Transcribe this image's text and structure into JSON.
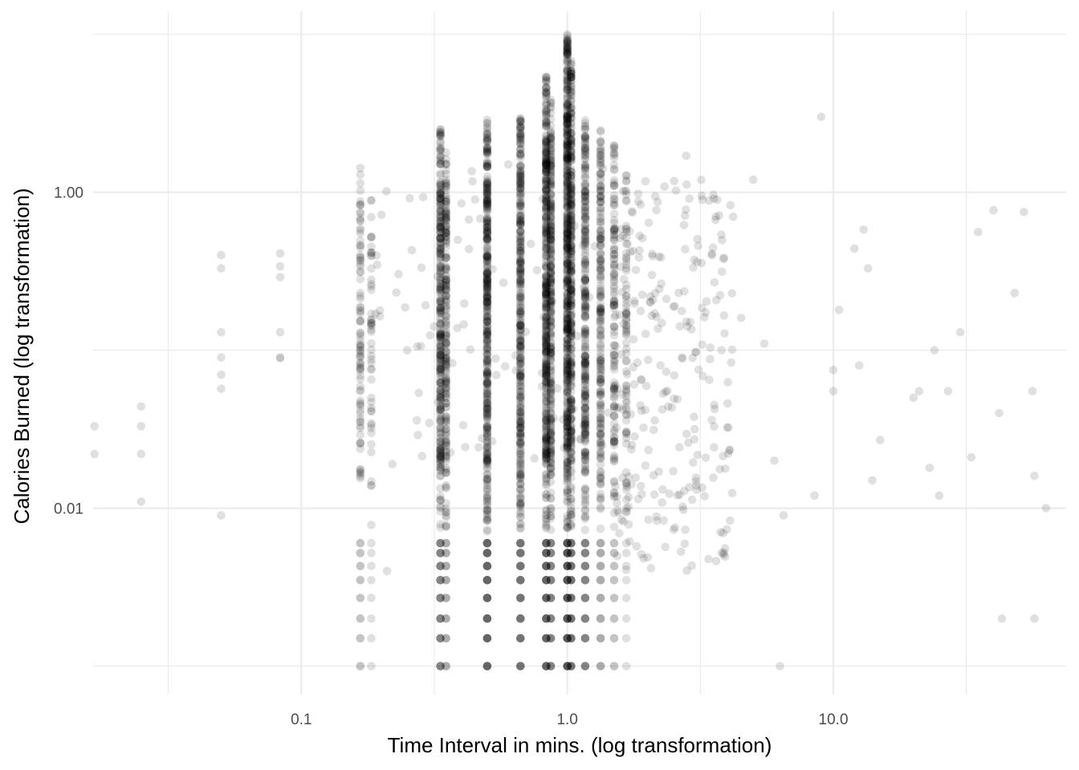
{
  "chart_data": {
    "type": "scatter",
    "title": "",
    "xlabel": "Time Interval in mins. (log transformation)",
    "ylabel": "Calories Burned (log transformation)",
    "x_scale": "log10",
    "y_scale": "log10",
    "xlim": [
      0.0165,
      75
    ],
    "ylim": [
      0.00066,
      14
    ],
    "x_ticks": [
      {
        "value": 0.1,
        "label": "0.1"
      },
      {
        "value": 1.0,
        "label": "1.0"
      },
      {
        "value": 10.0,
        "label": "10.0"
      }
    ],
    "y_ticks": [
      {
        "value": 0.01,
        "label": "0.01"
      },
      {
        "value": 1.0,
        "label": "1.00"
      }
    ],
    "grid": true,
    "point_color": "#000000",
    "point_opacity": 0.12,
    "gridline_color": "#ebebeb",
    "background": "#ffffff",
    "series": [
      {
        "x_columns": [
          0.1667,
          0.1833,
          0.3333,
          0.35,
          0.5,
          0.6667,
          0.8333,
          0.8667,
          1.0,
          1.0333,
          1.1667,
          1.3333,
          1.5,
          1.6667
        ],
        "column_y_ranges": [
          [
            0.001,
            1.45
          ],
          [
            0.001,
            0.9
          ],
          [
            0.001,
            2.6
          ],
          [
            0.001,
            1.8
          ],
          [
            0.001,
            3.2
          ],
          [
            0.001,
            3.4
          ],
          [
            0.001,
            5.5
          ],
          [
            0.001,
            3.9
          ],
          [
            0.001,
            10.0
          ],
          [
            0.001,
            6.8
          ],
          [
            0.001,
            2.9
          ],
          [
            0.001,
            2.5
          ],
          [
            0.001,
            2.0
          ],
          [
            0.001,
            1.3
          ]
        ],
        "column_weights": [
          18,
          10,
          60,
          40,
          80,
          70,
          85,
          60,
          100,
          70,
          55,
          40,
          25,
          15
        ],
        "discrete_low_y": [
          0.001,
          0.0015,
          0.002,
          0.0027,
          0.0035,
          0.0043,
          0.0052,
          0.006
        ],
        "outliers": [
          {
            "x": 0.0167,
            "y": 0.033
          },
          {
            "x": 0.0167,
            "y": 0.022
          },
          {
            "x": 0.025,
            "y": 0.033
          },
          {
            "x": 0.025,
            "y": 0.022
          },
          {
            "x": 0.025,
            "y": 0.044
          },
          {
            "x": 0.025,
            "y": 0.011
          },
          {
            "x": 0.05,
            "y": 0.4
          },
          {
            "x": 0.05,
            "y": 0.33
          },
          {
            "x": 0.05,
            "y": 0.13
          },
          {
            "x": 0.05,
            "y": 0.09
          },
          {
            "x": 0.05,
            "y": 0.07
          },
          {
            "x": 0.05,
            "y": 0.057
          },
          {
            "x": 0.05,
            "y": 0.009
          },
          {
            "x": 0.0833,
            "y": 0.41
          },
          {
            "x": 0.0833,
            "y": 0.34
          },
          {
            "x": 0.0833,
            "y": 0.29
          },
          {
            "x": 0.0833,
            "y": 0.13
          },
          {
            "x": 0.0833,
            "y": 0.09
          },
          {
            "x": 0.0833,
            "y": 0.089
          },
          {
            "x": 4.2,
            "y": 0.7
          },
          {
            "x": 5.0,
            "y": 1.2
          },
          {
            "x": 4.5,
            "y": 0.16
          },
          {
            "x": 5.5,
            "y": 0.11
          },
          {
            "x": 6.0,
            "y": 0.02
          },
          {
            "x": 6.5,
            "y": 0.009
          },
          {
            "x": 6.3,
            "y": 0.001
          },
          {
            "x": 8.5,
            "y": 0.012
          },
          {
            "x": 9.0,
            "y": 3.0
          },
          {
            "x": 10.0,
            "y": 0.075
          },
          {
            "x": 10.0,
            "y": 0.055
          },
          {
            "x": 10.5,
            "y": 0.18
          },
          {
            "x": 12.0,
            "y": 0.44
          },
          {
            "x": 12.5,
            "y": 0.08
          },
          {
            "x": 13.0,
            "y": 0.58
          },
          {
            "x": 13.5,
            "y": 0.33
          },
          {
            "x": 14.0,
            "y": 0.015
          },
          {
            "x": 15.0,
            "y": 0.027
          },
          {
            "x": 20.0,
            "y": 0.05
          },
          {
            "x": 21.0,
            "y": 0.055
          },
          {
            "x": 23.0,
            "y": 0.018
          },
          {
            "x": 24.0,
            "y": 0.1
          },
          {
            "x": 25.0,
            "y": 0.012
          },
          {
            "x": 27.0,
            "y": 0.055
          },
          {
            "x": 30.0,
            "y": 0.13
          },
          {
            "x": 33.0,
            "y": 0.021
          },
          {
            "x": 35.0,
            "y": 0.56
          },
          {
            "x": 40.0,
            "y": 0.77
          },
          {
            "x": 42.0,
            "y": 0.04
          },
          {
            "x": 43.0,
            "y": 0.002
          },
          {
            "x": 48.0,
            "y": 0.23
          },
          {
            "x": 52.0,
            "y": 0.75
          },
          {
            "x": 56.0,
            "y": 0.055
          },
          {
            "x": 57.0,
            "y": 0.016
          },
          {
            "x": 57.0,
            "y": 0.002
          },
          {
            "x": 63.0,
            "y": 0.01
          },
          {
            "x": 3.5,
            "y": 0.4
          },
          {
            "x": 3.2,
            "y": 0.95
          },
          {
            "x": 3.8,
            "y": 0.1
          },
          {
            "x": 2.8,
            "y": 1.7
          },
          {
            "x": 0.4,
            "y": 0.85
          },
          {
            "x": 0.45,
            "y": 0.9
          },
          {
            "x": 0.6,
            "y": 1.5
          },
          {
            "x": 0.2,
            "y": 0.72
          },
          {
            "x": 0.21,
            "y": 0.004
          },
          {
            "x": 0.25,
            "y": 0.1
          },
          {
            "x": 0.22,
            "y": 0.019
          }
        ]
      }
    ]
  }
}
